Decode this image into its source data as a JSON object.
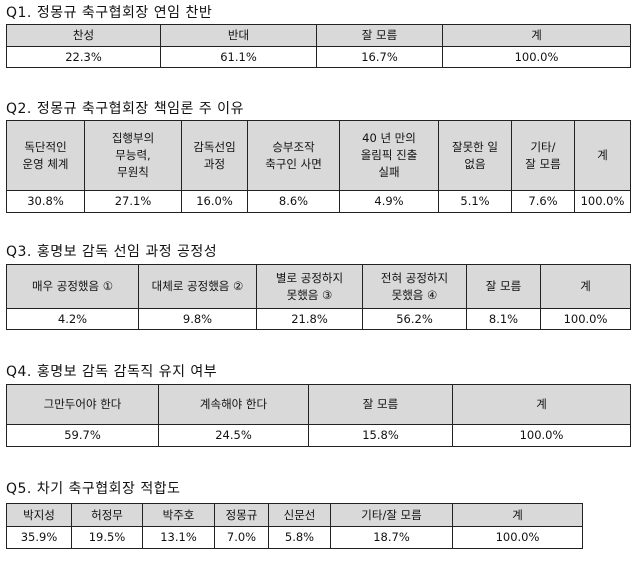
{
  "q1": {
    "title": "Q1. 정몽규 축구협회장 연임 찬반",
    "headers": [
      "찬성",
      "반대",
      "잘 모름",
      "계"
    ],
    "values": [
      "22.3%",
      "61.1%",
      "16.7%",
      "100.0%"
    ]
  },
  "q2": {
    "title": "Q2. 정몽규 축구협회장 책임론 주 이유",
    "headers": [
      [
        "독단적인",
        "운영 체계"
      ],
      [
        "집행부의",
        "무능력,",
        "무원칙"
      ],
      [
        "감독선임",
        "과정"
      ],
      [
        "승부조작",
        "축구인 사면"
      ],
      [
        "40 년 만의",
        "올림픽 진출",
        "실패"
      ],
      [
        "잘못한 일",
        "없음"
      ],
      [
        "기타/",
        "잘 모름"
      ],
      [
        "계"
      ]
    ],
    "values": [
      "30.8%",
      "27.1%",
      "16.0%",
      "8.6%",
      "4.9%",
      "5.1%",
      "7.6%",
      "100.0%"
    ]
  },
  "q3": {
    "title": "Q3. 홍명보 감독 선임 과정 공정성",
    "headers": [
      [
        "매우 공정했음 ①"
      ],
      [
        "대체로 공정했음 ②"
      ],
      [
        "별로 공정하지",
        "못했음 ③"
      ],
      [
        "전혀 공정하지",
        "못했음 ④"
      ],
      [
        "잘 모름"
      ],
      [
        "계"
      ]
    ],
    "values": [
      "4.2%",
      "9.8%",
      "21.8%",
      "56.2%",
      "8.1%",
      "100.0%"
    ]
  },
  "q4": {
    "title": "Q4. 홍명보 감독 감독직 유지 여부",
    "headers": [
      "그만두어야 한다",
      "계속해야 한다",
      "잘 모름",
      "계"
    ],
    "values": [
      "59.7%",
      "24.5%",
      "15.8%",
      "100.0%"
    ]
  },
  "q5": {
    "title": "Q5. 차기 축구협회장 적합도",
    "headers": [
      "박지성",
      "허정무",
      "박주호",
      "정몽규",
      "신문선",
      "기타/잘 모름",
      "계"
    ],
    "values": [
      "35.9%",
      "19.5%",
      "13.1%",
      "7.0%",
      "5.8%",
      "18.7%",
      "100.0%"
    ]
  }
}
